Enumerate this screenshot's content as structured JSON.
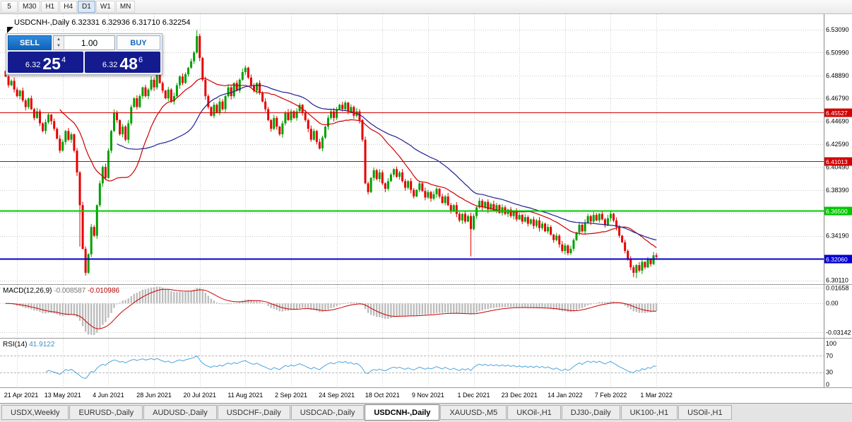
{
  "toolbar": {
    "periods": [
      "5",
      "M30",
      "H1",
      "H4",
      "D1",
      "W1",
      "MN"
    ],
    "active": "D1"
  },
  "chart_header": {
    "symbol_line": "USDCNH-,Daily 6.32331 6.32936 6.31710 6.32254"
  },
  "trade_panel": {
    "sell_label": "SELL",
    "buy_label": "BUY",
    "volume": "1.00",
    "sell_price": {
      "prefix": "6.32",
      "big": "25",
      "sup": "4"
    },
    "buy_price": {
      "prefix": "6.32",
      "big": "48",
      "sup": "6"
    }
  },
  "indicators": {
    "macd": {
      "label": "MACD(12,26,9)",
      "value_main": "-0.008587",
      "value_signal": "-0.010986",
      "axis_labels": [
        "0.01658",
        "0.00",
        "-0.03142"
      ],
      "axis_values": [
        0.01658,
        0,
        -0.03142
      ],
      "params": [
        12,
        26,
        9
      ]
    },
    "rsi": {
      "label": "RSI(14)",
      "value": "41.9122",
      "axis_labels": [
        "100",
        "70",
        "30",
        "0"
      ],
      "axis_values": [
        100,
        70,
        30,
        0
      ],
      "levels": [
        70,
        30
      ],
      "period": 14
    }
  },
  "price_axis": {
    "labels": [
      "6.53090",
      "6.50990",
      "6.48890",
      "6.46790",
      "6.44690",
      "6.42590",
      "6.40490",
      "6.38390",
      "6.36290",
      "6.34190",
      "6.32090",
      "6.30110"
    ]
  },
  "date_axis": {
    "labels": [
      "21 Apr 2021",
      "13 May 2021",
      "4 Jun 2021",
      "28 Jun 2021",
      "20 Jul 2021",
      "11 Aug 2021",
      "2 Sep 2021",
      "24 Sep 2021",
      "18 Oct 2021",
      "9 Nov 2021",
      "1 Dec 2021",
      "23 Dec 2021",
      "14 Jan 2022",
      "7 Feb 2022",
      "1 Mar 2022"
    ],
    "first_index": 4,
    "every": 16
  },
  "tabs": {
    "items": [
      "USDX,Weekly",
      "EURUSD-,Daily",
      "AUDUSD-,Daily",
      "USDCHF-,Daily",
      "USDCAD-,Daily",
      "USDCNH-,Daily",
      "XAUUSD-,M5",
      "UKOil-,H1",
      "DJ30-,Daily",
      "UK100-,H1",
      "USOil-,H1"
    ],
    "active_index": 5
  },
  "colors": {
    "up": "#00a000",
    "down": "#e60000",
    "grid": "#cacaca",
    "ma_fast": "#cc0000",
    "ma_slow": "#202090",
    "macd_hist": "#bdbdbd",
    "macd_signal": "#cc0000",
    "rsi_line": "#4ba6dd",
    "accent_blue": "#1577d3",
    "price_panel_navy": "#141b8f",
    "separator": "#9b9b9b"
  },
  "chart_data": {
    "type": "candlestick",
    "symbol": "USDCNH-",
    "timeframe": "Daily",
    "current_bar": {
      "open": 6.32331,
      "high": 6.32936,
      "low": 6.3171,
      "close": 6.32254
    },
    "bid_display": "6.32254",
    "ask_display": "6.32486",
    "hlines": [
      {
        "price": 6.45527,
        "label": "6.45527",
        "color": "#d20000",
        "width": 1
      },
      {
        "price": 6.41013,
        "label": "6.41013",
        "color": "#d20000",
        "width": 1
      },
      {
        "price": 6.365,
        "label": "6.36500",
        "color": "#00c800",
        "width": 2
      },
      {
        "price": 6.3206,
        "label": "6.32060",
        "color": "#0000d2",
        "width": 2
      }
    ],
    "y_top_value": 6.5309,
    "y_step": 0.021,
    "first_open": 6.493,
    "closes": [
      6.488,
      6.48,
      6.484,
      6.476,
      6.47,
      6.475,
      6.466,
      6.46,
      6.468,
      6.458,
      6.45,
      6.456,
      6.445,
      6.438,
      6.446,
      6.453,
      6.447,
      6.44,
      6.431,
      6.42,
      6.428,
      6.438,
      6.43,
      6.435,
      6.42,
      6.4,
      6.37,
      6.33,
      6.308,
      6.325,
      6.35,
      6.342,
      6.37,
      6.39,
      6.405,
      6.395,
      6.42,
      6.438,
      6.455,
      6.448,
      6.435,
      6.442,
      6.43,
      6.445,
      6.46,
      6.468,
      6.46,
      6.47,
      6.478,
      6.47,
      6.476,
      6.485,
      6.478,
      6.49,
      6.482,
      6.475,
      6.468,
      6.476,
      6.465,
      6.47,
      6.48,
      6.488,
      6.482,
      6.49,
      6.496,
      6.502,
      6.51,
      6.525,
      6.505,
      6.485,
      6.47,
      6.46,
      6.452,
      6.462,
      6.455,
      6.465,
      6.458,
      6.47,
      6.478,
      6.47,
      6.482,
      6.475,
      6.485,
      6.492,
      6.496,
      6.487,
      6.48,
      6.475,
      6.482,
      6.473,
      6.465,
      6.458,
      6.448,
      6.44,
      6.45,
      6.442,
      6.435,
      6.445,
      6.455,
      6.448,
      6.456,
      6.45,
      6.456,
      6.462,
      6.455,
      6.448,
      6.44,
      6.43,
      6.438,
      6.428,
      6.422,
      6.432,
      6.442,
      6.45,
      6.456,
      6.45,
      6.458,
      6.462,
      6.458,
      6.464,
      6.456,
      6.46,
      6.452,
      6.456,
      6.448,
      6.43,
      6.39,
      6.382,
      6.395,
      6.402,
      6.394,
      6.4,
      6.39,
      6.385,
      6.392,
      6.398,
      6.403,
      6.396,
      6.4,
      6.392,
      6.386,
      6.392,
      6.384,
      6.378,
      6.384,
      6.39,
      6.383,
      6.377,
      6.382,
      6.376,
      6.38,
      6.385,
      6.378,
      6.372,
      6.378,
      6.37,
      6.365,
      6.37,
      6.362,
      6.356,
      6.362,
      6.355,
      6.36,
      6.348,
      6.36,
      6.368,
      6.374,
      6.368,
      6.373,
      6.366,
      6.371,
      6.365,
      6.37,
      6.363,
      6.368,
      6.362,
      6.366,
      6.36,
      6.364,
      6.357,
      6.361,
      6.355,
      6.359,
      6.353,
      6.357,
      6.351,
      6.356,
      6.349,
      6.353,
      6.346,
      6.35,
      6.343,
      6.338,
      6.342,
      6.334,
      6.328,
      6.333,
      6.326,
      6.33,
      6.338,
      6.345,
      6.352,
      6.346,
      6.354,
      6.36,
      6.355,
      6.361,
      6.356,
      6.362,
      6.357,
      6.352,
      6.358,
      6.362,
      6.356,
      6.35,
      6.342,
      6.336,
      6.328,
      6.32,
      6.313,
      6.308,
      6.315,
      6.31,
      6.318,
      6.313,
      6.32,
      6.316,
      6.324,
      6.3225
    ],
    "wick_model": {
      "base": 0.0007,
      "amp": 0.0028
    },
    "wick_overrides": {
      "26": {
        "l": 6.332
      },
      "28": {
        "l": 6.3055
      },
      "67": {
        "h": 6.5305
      },
      "163": {
        "l": 6.323
      },
      "198": {
        "l": 6.3245
      },
      "220": {
        "l": 6.304
      },
      "221": {
        "l": 6.303
      }
    },
    "moving_averages": [
      {
        "period": 20,
        "color": "#cc0000"
      },
      {
        "period": 40,
        "color": "#202090"
      }
    ]
  }
}
